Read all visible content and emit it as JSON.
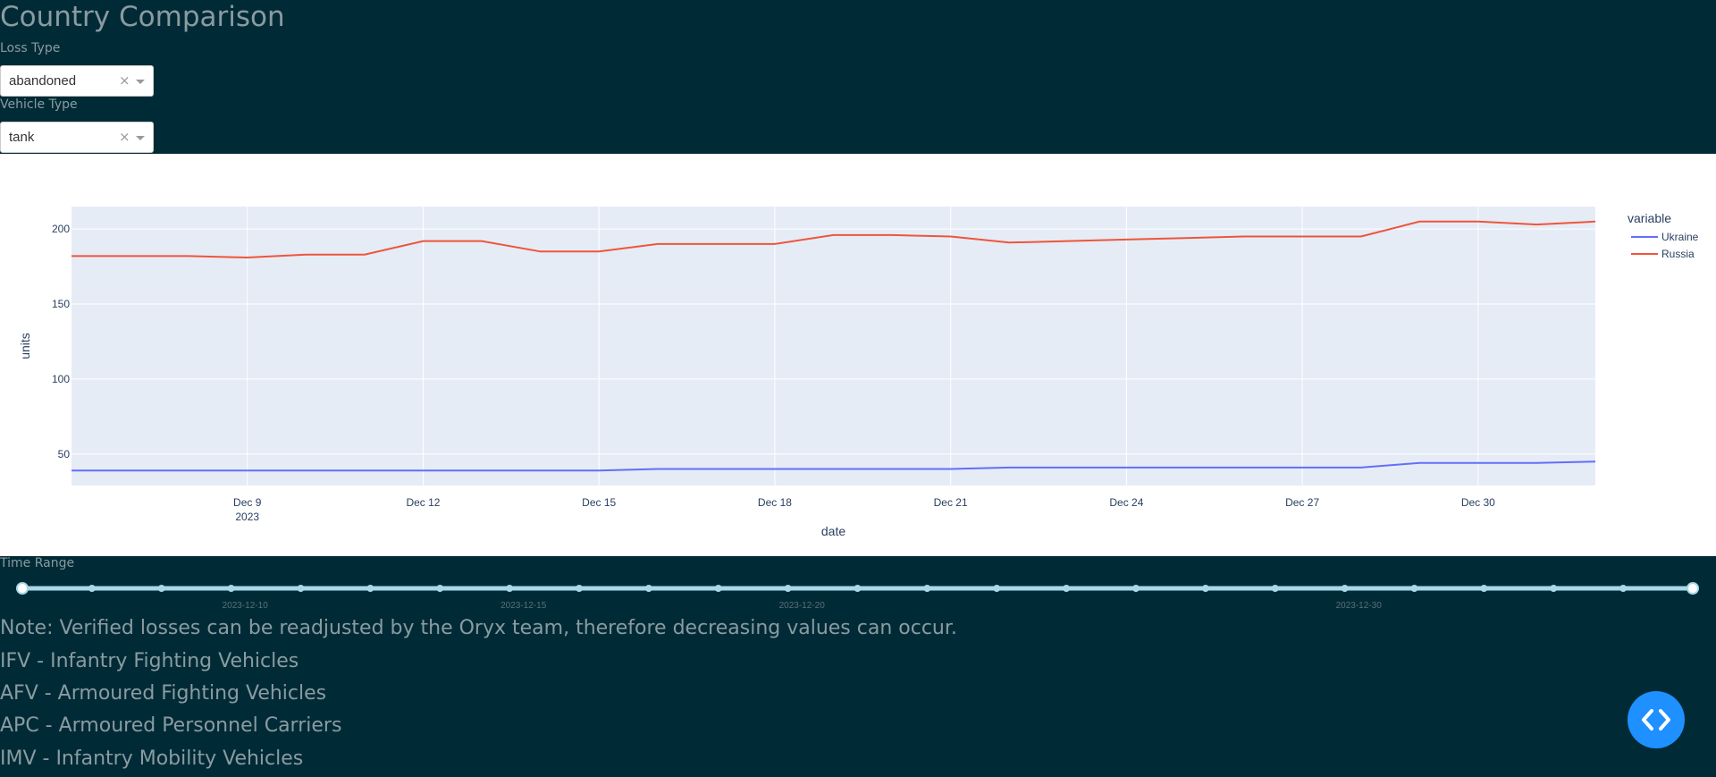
{
  "page": {
    "title": "Country Comparison"
  },
  "filters": {
    "loss_type": {
      "label": "Loss Type",
      "value": "abandoned",
      "clear_glyph": "×"
    },
    "vehicle_type": {
      "label": "Vehicle Type",
      "value": "tank",
      "clear_glyph": "×"
    }
  },
  "chart_data": {
    "type": "line",
    "title": "",
    "xlabel": "date",
    "ylabel": "units",
    "x": [
      "2023-12-06",
      "2023-12-07",
      "2023-12-08",
      "2023-12-09",
      "2023-12-10",
      "2023-12-11",
      "2023-12-12",
      "2023-12-13",
      "2023-12-14",
      "2023-12-15",
      "2023-12-16",
      "2023-12-17",
      "2023-12-18",
      "2023-12-19",
      "2023-12-20",
      "2023-12-21",
      "2023-12-22",
      "2023-12-23",
      "2023-12-24",
      "2023-12-25",
      "2023-12-26",
      "2023-12-27",
      "2023-12-28",
      "2023-12-29",
      "2023-12-30",
      "2023-12-31",
      "2024-01-01"
    ],
    "series": [
      {
        "name": "Ukraine",
        "color": "#636efa",
        "values": [
          39,
          39,
          39,
          39,
          39,
          39,
          39,
          39,
          39,
          39,
          40,
          40,
          40,
          40,
          40,
          40,
          41,
          41,
          41,
          41,
          41,
          41,
          41,
          44,
          44,
          44,
          45
        ]
      },
      {
        "name": "Russia",
        "color": "#ef553b",
        "values": [
          182,
          182,
          182,
          181,
          183,
          183,
          192,
          192,
          185,
          185,
          190,
          190,
          190,
          196,
          196,
          195,
          191,
          192,
          193,
          194,
          195,
          195,
          195,
          205,
          205,
          203,
          205
        ]
      }
    ],
    "ylim": [
      29,
      215
    ],
    "y_ticks": [
      50,
      100,
      150,
      200
    ],
    "x_ticks": [
      {
        "date": "2023-12-09",
        "label": "Dec 9",
        "sublabel": "2023"
      },
      {
        "date": "2023-12-12",
        "label": "Dec 12"
      },
      {
        "date": "2023-12-15",
        "label": "Dec 15"
      },
      {
        "date": "2023-12-18",
        "label": "Dec 18"
      },
      {
        "date": "2023-12-21",
        "label": "Dec 21"
      },
      {
        "date": "2023-12-24",
        "label": "Dec 24"
      },
      {
        "date": "2023-12-27",
        "label": "Dec 27"
      },
      {
        "date": "2023-12-30",
        "label": "Dec 30"
      }
    ],
    "legend": {
      "title": "variable",
      "position": "right"
    },
    "grid": true
  },
  "time_range": {
    "label": "Time Range",
    "marks": [
      "2023-12-10",
      "2023-12-15",
      "2023-12-20",
      "2023-12-30"
    ],
    "step_count": 24
  },
  "notes": [
    "Note: Verified losses can be readjusted by the Oryx team, therefore decreasing values can occur.",
    "IFV - Infantry Fighting Vehicles",
    "AFV - Armoured Fighting Vehicles",
    "APC - Armoured Personnel Carriers",
    "IMV - Infantry Mobility Vehicles"
  ],
  "colors": {
    "background": "#002b36",
    "slider": "#a9d8e8",
    "fab": "#1e90ff"
  },
  "icons": {
    "fab": "code-brackets-icon"
  }
}
